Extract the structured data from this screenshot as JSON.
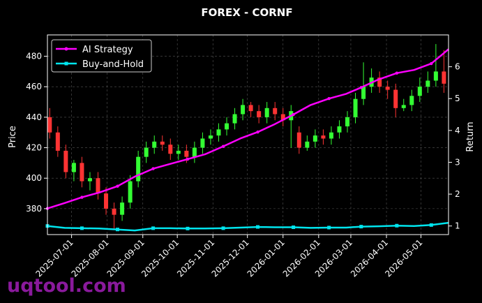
{
  "chart_data": {
    "type": "line",
    "title": "FOREX - CORNF",
    "ylabel_left": "Price",
    "ylabel_right": "Return",
    "ylim_left": [
      363,
      494
    ],
    "ylim_right": [
      0.73,
      7.0
    ],
    "left_ticks": [
      380,
      400,
      420,
      440,
      460,
      480
    ],
    "right_ticks": [
      1,
      2,
      3,
      4,
      5,
      6
    ],
    "x_ticks": [
      "2025-07-01",
      "2025-08-01",
      "2025-09-01",
      "2025-10-01",
      "2025-11-01",
      "2025-12-01",
      "2026-01-01",
      "2026-02-01",
      "2026-03-01",
      "2026-04-01",
      "2026-05-01"
    ],
    "x_range": [
      "2025-06-10",
      "2026-05-25"
    ],
    "grid": true,
    "legend_position": "top-left",
    "series": [
      {
        "name": "AI Strategy",
        "color": "#ff00ff",
        "axis": "right",
        "x": [
          "2025-06-10",
          "2025-06-25",
          "2025-07-10",
          "2025-07-25",
          "2025-08-10",
          "2025-08-25",
          "2025-09-10",
          "2025-09-25",
          "2025-10-10",
          "2025-10-25",
          "2025-11-10",
          "2025-11-25",
          "2025-12-10",
          "2025-12-25",
          "2026-01-10",
          "2026-01-25",
          "2026-02-10",
          "2026-02-25",
          "2026-03-10",
          "2026-03-25",
          "2026-04-10",
          "2026-04-25",
          "2026-05-10",
          "2026-05-25"
        ],
        "values": [
          1.55,
          1.72,
          1.9,
          2.05,
          2.25,
          2.55,
          2.8,
          2.95,
          3.1,
          3.25,
          3.5,
          3.75,
          3.95,
          4.2,
          4.5,
          4.8,
          5.0,
          5.15,
          5.35,
          5.6,
          5.8,
          5.9,
          6.1,
          6.55
        ]
      },
      {
        "name": "Buy-and-Hold",
        "color": "#00e5ee",
        "axis": "right",
        "x": [
          "2025-06-10",
          "2025-06-25",
          "2025-07-10",
          "2025-07-25",
          "2025-08-10",
          "2025-08-25",
          "2025-09-10",
          "2025-09-25",
          "2025-10-10",
          "2025-10-25",
          "2025-11-10",
          "2025-11-25",
          "2025-12-10",
          "2025-12-25",
          "2026-01-10",
          "2026-01-25",
          "2026-02-10",
          "2026-02-25",
          "2026-03-10",
          "2026-03-25",
          "2026-04-10",
          "2026-04-25",
          "2026-05-10",
          "2026-05-25"
        ],
        "values": [
          1.0,
          0.94,
          0.93,
          0.92,
          0.89,
          0.86,
          0.93,
          0.93,
          0.92,
          0.92,
          0.93,
          0.95,
          0.97,
          0.96,
          0.96,
          0.94,
          0.95,
          0.95,
          0.98,
          0.99,
          1.01,
          1.0,
          1.03,
          1.1
        ]
      }
    ],
    "candlesticks": {
      "axis": "left",
      "up_color": "#33ff33",
      "down_color": "#ff3333",
      "x": [
        "2025-06-12",
        "2025-06-19",
        "2025-06-26",
        "2025-07-03",
        "2025-07-10",
        "2025-07-17",
        "2025-07-24",
        "2025-07-31",
        "2025-08-07",
        "2025-08-14",
        "2025-08-21",
        "2025-08-28",
        "2025-09-04",
        "2025-09-11",
        "2025-09-18",
        "2025-09-25",
        "2025-10-02",
        "2025-10-09",
        "2025-10-16",
        "2025-10-23",
        "2025-10-30",
        "2025-11-06",
        "2025-11-13",
        "2025-11-20",
        "2025-11-27",
        "2025-12-04",
        "2025-12-11",
        "2025-12-18",
        "2025-12-25",
        "2026-01-01",
        "2026-01-08",
        "2026-01-15",
        "2026-01-22",
        "2026-01-29",
        "2026-02-05",
        "2026-02-12",
        "2026-02-19",
        "2026-02-26",
        "2026-03-05",
        "2026-03-12",
        "2026-03-19",
        "2026-03-26",
        "2026-04-02",
        "2026-04-09",
        "2026-04-16",
        "2026-04-23",
        "2026-04-30",
        "2026-05-07",
        "2026-05-14",
        "2026-05-21"
      ],
      "open": [
        440,
        430,
        418,
        404,
        410,
        398,
        400,
        390,
        380,
        376,
        384,
        398,
        414,
        420,
        424,
        422,
        416,
        418,
        414,
        420,
        426,
        428,
        432,
        436,
        442,
        448,
        444,
        440,
        446,
        442,
        438,
        430,
        420,
        424,
        428,
        426,
        430,
        434,
        440,
        452,
        460,
        466,
        460,
        458,
        446,
        448,
        454,
        460,
        464,
        470
      ],
      "close": [
        430,
        418,
        404,
        410,
        398,
        400,
        390,
        380,
        376,
        384,
        398,
        414,
        420,
        424,
        422,
        416,
        418,
        414,
        420,
        426,
        428,
        432,
        436,
        442,
        448,
        444,
        440,
        446,
        442,
        438,
        444,
        420,
        424,
        428,
        426,
        430,
        434,
        440,
        452,
        460,
        466,
        460,
        458,
        446,
        448,
        454,
        460,
        464,
        470,
        462
      ],
      "high": [
        446,
        434,
        422,
        412,
        414,
        404,
        404,
        394,
        384,
        388,
        402,
        418,
        424,
        428,
        428,
        426,
        422,
        422,
        424,
        430,
        432,
        436,
        440,
        446,
        452,
        450,
        448,
        450,
        450,
        446,
        448,
        434,
        428,
        432,
        432,
        434,
        438,
        444,
        456,
        476,
        472,
        470,
        464,
        462,
        452,
        458,
        466,
        470,
        488,
        484
      ],
      "low": [
        426,
        414,
        400,
        398,
        394,
        392,
        386,
        376,
        366,
        372,
        380,
        394,
        410,
        416,
        418,
        412,
        412,
        410,
        410,
        416,
        422,
        424,
        428,
        432,
        438,
        440,
        436,
        436,
        438,
        434,
        420,
        416,
        418,
        420,
        422,
        422,
        426,
        430,
        436,
        448,
        456,
        456,
        452,
        440,
        444,
        444,
        450,
        456,
        460,
        456
      ]
    }
  },
  "watermark": "uqtool.com"
}
